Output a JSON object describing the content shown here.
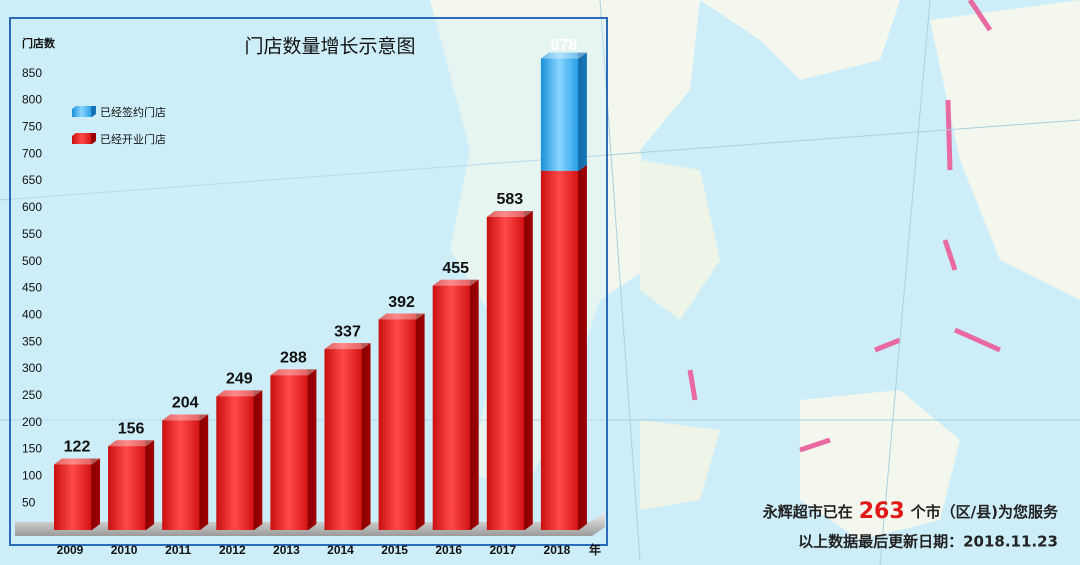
{
  "chart_data": {
    "type": "stacked-bar-3d",
    "title": "门店数量增长示意图",
    "y_label": "门店数",
    "x_label": "年",
    "categories": [
      "2009",
      "2010",
      "2011",
      "2012",
      "2013",
      "2014",
      "2015",
      "2016",
      "2017",
      "2018"
    ],
    "series": [
      {
        "name": "已经开业门店",
        "color": "#e01818",
        "values": [
          122,
          156,
          204,
          249,
          288,
          337,
          392,
          455,
          583,
          669
        ]
      },
      {
        "name": "已经签约门店",
        "color": "#2aa0e8",
        "values": [
          null,
          null,
          null,
          null,
          null,
          null,
          null,
          null,
          null,
          209
        ]
      }
    ],
    "totals": [
      null,
      null,
      null,
      null,
      null,
      null,
      null,
      null,
      null,
      878
    ],
    "ylim": [
      0,
      950
    ],
    "yticks": [
      50,
      100,
      150,
      200,
      250,
      300,
      350,
      400,
      450,
      500,
      550,
      600,
      650,
      700,
      750,
      800,
      850
    ],
    "legend": "upper-left"
  },
  "footer": {
    "prefix": "永辉超市已在",
    "count": "263",
    "suffix": "个市（区/县)为您服务",
    "update": "以上数据最后更新日期：2018.11.23"
  }
}
